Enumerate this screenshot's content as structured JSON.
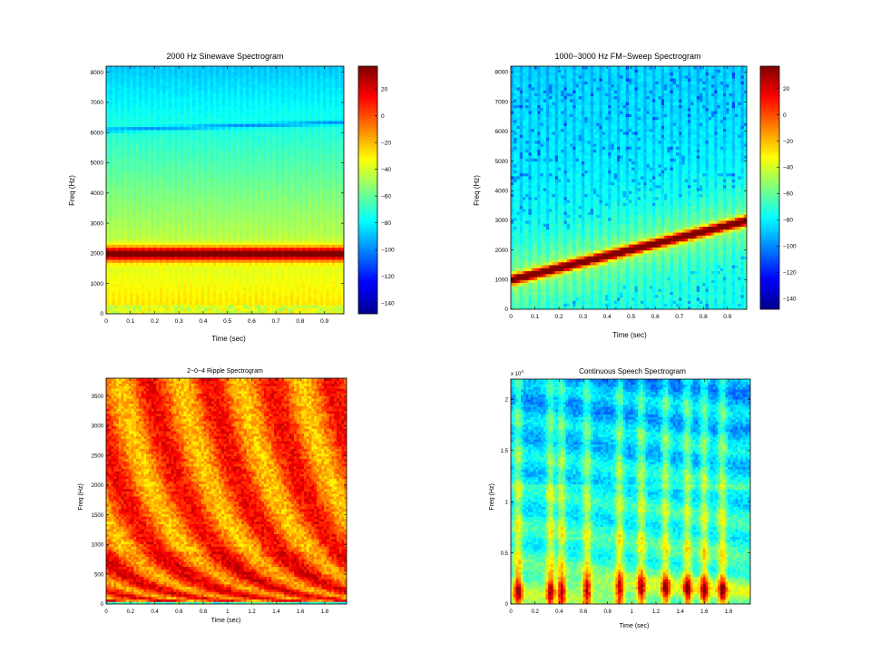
{
  "chart_data": [
    {
      "type": "heatmap",
      "title": "2000 Hz Sinewave Spectrogram",
      "xlabel": "Time (sec)",
      "ylabel": "Freq (Hz)",
      "xlim": [
        0,
        0.98
      ],
      "ylim": [
        0,
        8200
      ],
      "xticks": [
        0,
        0.1,
        0.2,
        0.3,
        0.4,
        0.5,
        0.6,
        0.7,
        0.8,
        0.9
      ],
      "xtick_labels": [
        "0",
        "0.1",
        "0.2",
        "0.3",
        "0.4",
        "0.5",
        "0.6",
        "0.7",
        "0.8",
        "0.9"
      ],
      "yticks": [
        0,
        1000,
        2000,
        3000,
        4000,
        5000,
        6000,
        7000,
        8000
      ],
      "ytick_labels": [
        "0",
        "1000",
        "2000",
        "3000",
        "4000",
        "5000",
        "6000",
        "7000",
        "8000"
      ],
      "colorbar": {
        "range": [
          -148,
          37
        ],
        "ticks": [
          20,
          0,
          -20,
          -40,
          -60,
          -80,
          -100,
          -120,
          -140
        ],
        "tick_labels": [
          "20",
          "0",
          "−20",
          "−40",
          "−60",
          "−80",
          "−100",
          "−120",
          "−140"
        ]
      },
      "features": {
        "tone_hz": 2000,
        "alias_line_start_hz": 6100,
        "alias_line_end_hz": 6350
      }
    },
    {
      "type": "heatmap",
      "title": "1000−3000 Hz FM−Sweep Spectrogram",
      "xlabel": "Time (sec)",
      "ylabel": "Freq (Hz)",
      "xlim": [
        0,
        0.98
      ],
      "ylim": [
        0,
        8200
      ],
      "xticks": [
        0,
        0.1,
        0.2,
        0.3,
        0.4,
        0.5,
        0.6,
        0.7,
        0.8,
        0.9
      ],
      "xtick_labels": [
        "0",
        "0.1",
        "0.2",
        "0.3",
        "0.4",
        "0.5",
        "0.6",
        "0.7",
        "0.8",
        "0.9"
      ],
      "yticks": [
        0,
        1000,
        2000,
        3000,
        4000,
        5000,
        6000,
        7000,
        8000
      ],
      "ytick_labels": [
        "0",
        "1000",
        "2000",
        "3000",
        "4000",
        "5000",
        "6000",
        "7000",
        "8000"
      ],
      "colorbar": {
        "range": [
          -148,
          37
        ],
        "ticks": [
          20,
          0,
          -20,
          -40,
          -60,
          -80,
          -100,
          -120,
          -140
        ],
        "tick_labels": [
          "20",
          "0",
          "−20",
          "−40",
          "−60",
          "−80",
          "−100",
          "−120",
          "−140"
        ]
      },
      "features": {
        "sweep_start_hz": 1000,
        "sweep_end_hz": 3000
      }
    },
    {
      "type": "heatmap",
      "title": "2−0−4 Ripple Spectrogram",
      "xlabel": "Time (sec)",
      "ylabel": "Freq (Hz)",
      "xlim": [
        0,
        1.98
      ],
      "ylim": [
        0,
        3800
      ],
      "xticks": [
        0,
        0.2,
        0.4,
        0.6,
        0.8,
        1,
        1.2,
        1.4,
        1.6,
        1.8
      ],
      "xtick_labels": [
        "0",
        "0.2",
        "0.4",
        "0.6",
        "0.8",
        "1",
        "1.2",
        "1.4",
        "1.6",
        "1.8"
      ],
      "yticks": [
        0,
        500,
        1000,
        1500,
        2000,
        2500,
        3000,
        3500
      ],
      "ytick_labels": [
        "0",
        "500",
        "1000",
        "1500",
        "2000",
        "2500",
        "3000",
        "3500"
      ]
    },
    {
      "type": "heatmap",
      "title": "Continuous Speech Spectrogram",
      "xlabel": "Time (sec)",
      "ylabel": "Freq (Hz)",
      "y_multiplier_base": "x 10",
      "y_multiplier_exp": "4",
      "xlim": [
        0,
        1.98
      ],
      "ylim": [
        0,
        2.2
      ],
      "xticks": [
        0,
        0.2,
        0.4,
        0.6,
        0.8,
        1,
        1.2,
        1.4,
        1.6,
        1.8
      ],
      "xtick_labels": [
        "0",
        "0.2",
        "0.4",
        "0.6",
        "0.8",
        "1",
        "1.2",
        "1.4",
        "1.6",
        "1.8"
      ],
      "yticks": [
        0,
        0.5,
        1,
        1.5,
        2
      ],
      "ytick_labels": [
        "0",
        "0.5",
        "1",
        "1.5",
        "2"
      ]
    }
  ]
}
